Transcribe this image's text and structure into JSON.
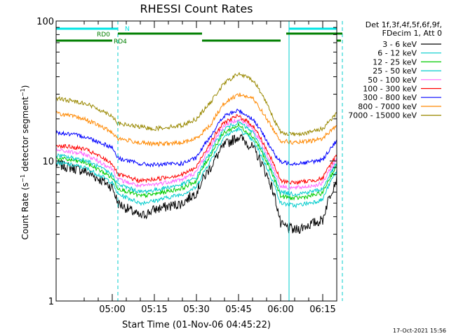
{
  "chart_data": {
    "type": "line",
    "title": "RHESSI Count Rates",
    "xlabel": "Start Time (01-Nov-06 04:45:22)",
    "ylabel": "Count Rate (s⁻¹ detector segment⁻¹)",
    "ylabel_parts": {
      "main": "Count Rate (s",
      "sup1": "−1",
      "mid": " detector segment",
      "sup2": "−1",
      "end": ")"
    },
    "yscale": "log",
    "ylim": [
      1,
      100
    ],
    "xlim_minutes": [
      -10,
      90
    ],
    "x_unit": "minutes after 04:50",
    "y_ticks": [
      {
        "value": 1,
        "label": "1"
      },
      {
        "value": 10,
        "label": "10"
      },
      {
        "value": 100,
        "label": "100"
      }
    ],
    "x_ticks": [
      {
        "value": 10,
        "label": "05:00"
      },
      {
        "value": 25,
        "label": "05:15"
      },
      {
        "value": 40,
        "label": "05:30"
      },
      {
        "value": 55,
        "label": "05:45"
      },
      {
        "value": 70,
        "label": "06:00"
      },
      {
        "value": 85,
        "label": "06:15"
      }
    ],
    "legend": {
      "placement": "right",
      "header": [
        "Det 1f,3f,4f,5f,6f,9f,",
        "FDecim 1, Att 0"
      ]
    },
    "series": [
      {
        "name": "3 - 6 keV",
        "color": "#000000",
        "x": [
          -10,
          0,
          10,
          12,
          20,
          25,
          35,
          40,
          45,
          50,
          55,
          60,
          65,
          68,
          70,
          75,
          80,
          85,
          90
        ],
        "y": [
          9.5,
          8.5,
          6.5,
          5.0,
          4.0,
          4.5,
          5.0,
          6.0,
          9.0,
          13.0,
          15.0,
          12.5,
          8.0,
          5.5,
          3.5,
          3.2,
          3.5,
          3.8,
          7.5
        ]
      },
      {
        "name": "6 - 12 keV",
        "color": "#00cccc",
        "x": [
          -10,
          0,
          10,
          12,
          20,
          25,
          35,
          40,
          45,
          50,
          55,
          60,
          65,
          68,
          70,
          75,
          80,
          85,
          90
        ],
        "y": [
          9.8,
          9.0,
          7.0,
          5.8,
          5.0,
          5.2,
          5.8,
          6.5,
          10.0,
          15.0,
          17.0,
          14.0,
          9.0,
          6.5,
          5.0,
          4.8,
          5.0,
          5.3,
          8.5
        ]
      },
      {
        "name": "12 - 25 keV",
        "color": "#00cc00",
        "x": [
          -10,
          0,
          10,
          12,
          20,
          25,
          35,
          40,
          45,
          50,
          55,
          60,
          65,
          68,
          70,
          75,
          80,
          85,
          90
        ],
        "y": [
          10.5,
          9.8,
          7.6,
          6.4,
          5.6,
          5.8,
          6.4,
          7.2,
          11.0,
          16.0,
          18.0,
          15.0,
          9.8,
          7.2,
          5.6,
          5.4,
          5.6,
          5.9,
          9.2
        ]
      },
      {
        "name": "25 - 50 keV",
        "color": "#00cccc",
        "x": [
          -10,
          0,
          10,
          12,
          20,
          25,
          35,
          40,
          45,
          50,
          55,
          60,
          65,
          68,
          70,
          75,
          80,
          85,
          90
        ],
        "y": [
          11.0,
          10.2,
          8.0,
          6.8,
          6.0,
          6.2,
          6.8,
          7.6,
          11.5,
          17.0,
          19.0,
          16.0,
          10.3,
          7.6,
          6.0,
          5.8,
          6.0,
          6.3,
          9.6
        ]
      },
      {
        "name": "50 - 100 keV",
        "color": "#ff66ff",
        "x": [
          -10,
          0,
          10,
          12,
          20,
          25,
          35,
          40,
          45,
          50,
          55,
          60,
          65,
          68,
          70,
          75,
          80,
          85,
          90
        ],
        "y": [
          12.0,
          11.2,
          8.8,
          7.4,
          6.6,
          6.8,
          7.4,
          8.3,
          12.5,
          18.0,
          20.0,
          17.0,
          11.2,
          8.3,
          6.6,
          6.4,
          6.6,
          6.9,
          10.3
        ]
      },
      {
        "name": "100 - 300 keV",
        "color": "#ff0000",
        "x": [
          -10,
          0,
          10,
          12,
          20,
          25,
          35,
          40,
          45,
          50,
          55,
          60,
          65,
          68,
          70,
          75,
          80,
          85,
          90
        ],
        "y": [
          13.0,
          12.2,
          9.6,
          8.0,
          7.2,
          7.4,
          8.0,
          9.0,
          13.5,
          19.0,
          21.0,
          18.0,
          12.0,
          9.0,
          7.2,
          7.0,
          7.2,
          7.5,
          11.0
        ]
      },
      {
        "name": "300 - 800 keV",
        "color": "#0000ff",
        "x": [
          -10,
          0,
          10,
          12,
          20,
          25,
          35,
          40,
          45,
          50,
          55,
          60,
          65,
          68,
          70,
          75,
          80,
          85,
          90
        ],
        "y": [
          16.0,
          15.0,
          12.5,
          10.5,
          9.5,
          9.4,
          9.6,
          10.5,
          15.0,
          21.0,
          23.0,
          20.0,
          14.0,
          11.0,
          9.8,
          9.6,
          9.8,
          10.2,
          14.0
        ]
      },
      {
        "name": "800 - 7000 keV",
        "color": "#ff8800",
        "x": [
          -10,
          0,
          10,
          12,
          20,
          25,
          35,
          40,
          45,
          50,
          55,
          60,
          65,
          68,
          70,
          75,
          80,
          85,
          90
        ],
        "y": [
          22.0,
          20.0,
          16.0,
          14.5,
          13.5,
          13.2,
          13.5,
          14.5,
          18.0,
          26.0,
          30.0,
          28.0,
          20.0,
          16.0,
          14.0,
          13.5,
          13.8,
          14.5,
          18.0
        ]
      },
      {
        "name": "7000 - 15000 keV",
        "color": "#998800",
        "x": [
          -10,
          0,
          10,
          12,
          20,
          25,
          35,
          40,
          45,
          50,
          55,
          60,
          65,
          68,
          70,
          75,
          80,
          85,
          90
        ],
        "y": [
          28.0,
          26.0,
          21.0,
          18.5,
          17.5,
          17.0,
          18.0,
          20.0,
          26.0,
          36.0,
          42.0,
          38.0,
          26.0,
          19.0,
          16.0,
          15.5,
          16.0,
          17.0,
          22.0
        ]
      }
    ],
    "vertical_lines": [
      {
        "x": 12,
        "style": "dashed",
        "color": "#00cccc"
      },
      {
        "x": 73,
        "style": "solid",
        "color": "#00cccc"
      },
      {
        "x": 92,
        "style": "dashed",
        "color": "#00cccc"
      }
    ],
    "flag_bars": [
      {
        "label": "N",
        "color": "#00e5e5",
        "segments": [
          [
            -10,
            12
          ],
          [
            73,
            90
          ]
        ]
      },
      {
        "label": "RD0",
        "color": "#007f00",
        "segments": [
          [
            12,
            42
          ],
          [
            72,
            92
          ]
        ]
      },
      {
        "label": "RD4",
        "color": "#007f00",
        "segments": [
          [
            -10,
            10
          ],
          [
            42,
            70
          ],
          [
            90,
            90
          ]
        ]
      }
    ],
    "timestamp": "17-Oct-2021 15:56"
  }
}
